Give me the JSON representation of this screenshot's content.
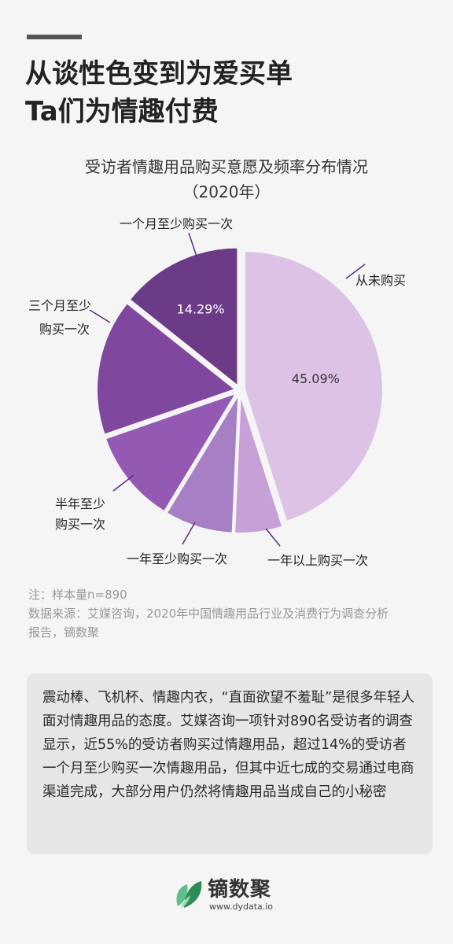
{
  "header": {
    "title_line1": "从谈性色变到为爱买单",
    "title_line2": "Ta们为情趣付费"
  },
  "chart_data": {
    "type": "pie",
    "title": "受访者情趣用品购买意愿及频率分布情况",
    "subtitle": "（2020年）",
    "slices": [
      {
        "label": "从未购买",
        "value": 45.09,
        "color": "#dcc3e6",
        "value_label": "45.09%"
      },
      {
        "label": "一年以上购买一次",
        "value": 5.6,
        "color": "#c8a0d8",
        "value_label": ""
      },
      {
        "label": "一年至少购买一次",
        "value": 8.0,
        "color": "#a67fc5",
        "value_label": ""
      },
      {
        "label": "半年至少购买一次",
        "value": 11.0,
        "color": "#9459b3",
        "value_label": ""
      },
      {
        "label": "三个月至少购买一次",
        "value": 16.02,
        "color": "#80479e",
        "value_label": ""
      },
      {
        "label": "一个月至少购买一次",
        "value": 14.29,
        "color": "#6c3b88",
        "value_label": "14.29%"
      }
    ],
    "labels": {
      "never": "从未购买",
      "over_year": "一年以上购买一次",
      "yearly": "一年至少购买一次",
      "half_year_l1": "半年至少",
      "half_year_l2": "购买一次",
      "quarterly_l1": "三个月至少",
      "quarterly_l2": "购买一次",
      "monthly": "一个月至少购买一次"
    }
  },
  "notes": {
    "sample": "注：样本量n=890",
    "source_line1": "数据来源：艾媒咨询，2020年中国情趣用品行业及消费行为调查分析",
    "source_line2": "报告，镝数聚"
  },
  "summary": {
    "text": "震动棒、飞机杯、情趣内衣，“直面欲望不羞耻”是很多年轻人面对情趣用品的态度。艾媒咨询一项针对890名受访者的调查显示，近55%的受访者购买过情趣用品，超过14%的受访者一个月至少购买一次情趣用品，但其中近七成的交易通过电商渠道完成，大部分用户仍然将情趣用品当成自己的小秘密"
  },
  "brand": {
    "name": "镝数聚",
    "url": "www.dydata.io",
    "logo_icon": "leaf-logo-icon",
    "logo_colors": [
      "#2e8b57",
      "#5cc08a",
      "#9ad9b0"
    ]
  }
}
